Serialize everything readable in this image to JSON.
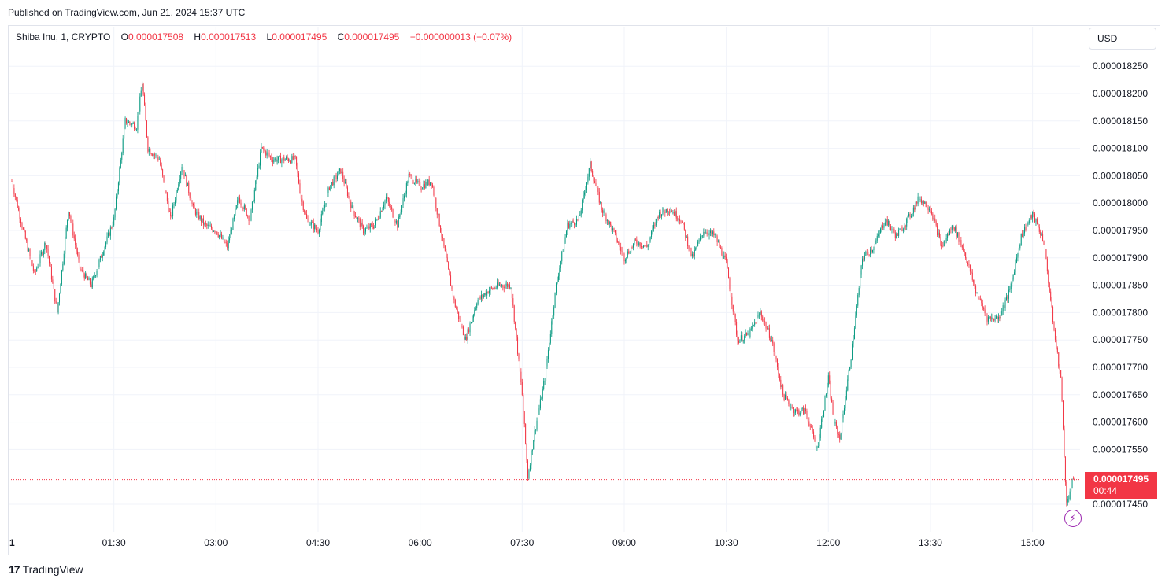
{
  "published": "Published on TradingView.com, Jun 21, 2024 15:37 UTC",
  "legend": {
    "symbol": "Shiba Inu, 1, CRYPTO",
    "open_label": "O",
    "open": "0.000017508",
    "high_label": "H",
    "high": "0.000017513",
    "low_label": "L",
    "low": "0.000017495",
    "close_label": "C",
    "close": "0.000017495",
    "change": "−0.000000013 (−0.07%)"
  },
  "currency": "USD",
  "last_price": {
    "price": "0.000017495",
    "countdown": "00:44"
  },
  "footer": {
    "brand": "TradingView",
    "brand_mark": "17"
  },
  "icons": {
    "alert": "lightning-icon"
  },
  "colors": {
    "up": "#089981",
    "down": "#f23645",
    "grid": "#f0f3fa",
    "accent": "#9c27b0"
  },
  "chart_data": {
    "type": "candlestick",
    "title": "Shiba Inu, 1, CRYPTO",
    "x_tick_labels": [
      "1",
      "01:30",
      "03:00",
      "04:30",
      "06:00",
      "07:30",
      "09:00",
      "10:30",
      "12:00",
      "13:30",
      "15:00"
    ],
    "y_tick_labels": [
      "0.000018250",
      "0.000018200",
      "0.000018150",
      "0.000018100",
      "0.000018050",
      "0.000018000",
      "0.000017950",
      "0.000017900",
      "0.000017850",
      "0.000017800",
      "0.000017750",
      "0.000017700",
      "0.000017650",
      "0.000017600",
      "0.000017550",
      "0.000017450"
    ],
    "ylim": [
      1.742e-05,
      1.829e-05
    ],
    "xlim_minutes": [
      0,
      937
    ],
    "last_price": 1.7495e-05,
    "series": [
      {
        "name": "Shiba Inu",
        "anchors_minutes": [
          0,
          10,
          20,
          30,
          40,
          50,
          60,
          70,
          80,
          90,
          100,
          110,
          115,
          120,
          130,
          140,
          150,
          160,
          170,
          180,
          190,
          200,
          210,
          220,
          230,
          240,
          250,
          255,
          260,
          270,
          280,
          290,
          300,
          310,
          320,
          330,
          340,
          350,
          360,
          370,
          380,
          390,
          400,
          410,
          420,
          430,
          440,
          445,
          450,
          455,
          460,
          470,
          480,
          490,
          500,
          510,
          520,
          530,
          540,
          550,
          560,
          570,
          580,
          590,
          600,
          610,
          620,
          630,
          640,
          650,
          660,
          670,
          680,
          690,
          700,
          710,
          720,
          725,
          730,
          740,
          750,
          760,
          770,
          780,
          790,
          800,
          810,
          820,
          830,
          840,
          850,
          860,
          870,
          880,
          890,
          900,
          910,
          920,
          925,
          930,
          935
        ],
        "anchors_price": [
          1.804e-05,
          1.795e-05,
          1.787e-05,
          1.793e-05,
          1.78e-05,
          1.799e-05,
          1.788e-05,
          1.785e-05,
          1.791e-05,
          1.797e-05,
          1.815e-05,
          1.814e-05,
          1.822e-05,
          1.81e-05,
          1.808e-05,
          1.797e-05,
          1.807e-05,
          1.799e-05,
          1.796e-05,
          1.795e-05,
          1.792e-05,
          1.801e-05,
          1.797e-05,
          1.81e-05,
          1.808e-05,
          1.808e-05,
          1.808e-05,
          1.801e-05,
          1.797e-05,
          1.795e-05,
          1.803e-05,
          1.806e-05,
          1.799e-05,
          1.795e-05,
          1.796e-05,
          1.801e-05,
          1.796e-05,
          1.805e-05,
          1.803e-05,
          1.804e-05,
          1.793e-05,
          1.782e-05,
          1.775e-05,
          1.782e-05,
          1.784e-05,
          1.785e-05,
          1.785e-05,
          1.775e-05,
          1.765e-05,
          1.75e-05,
          1.757e-05,
          1.768e-05,
          1.785e-05,
          1.796e-05,
          1.797e-05,
          1.807e-05,
          1.799e-05,
          1.795e-05,
          1.79e-05,
          1.793e-05,
          1.792e-05,
          1.798e-05,
          1.799e-05,
          1.797e-05,
          1.79e-05,
          1.795e-05,
          1.794e-05,
          1.789e-05,
          1.775e-05,
          1.776e-05,
          1.78e-05,
          1.775e-05,
          1.765e-05,
          1.762e-05,
          1.762e-05,
          1.755e-05,
          1.768e-05,
          1.76e-05,
          1.757e-05,
          1.772e-05,
          1.79e-05,
          1.792e-05,
          1.797e-05,
          1.794e-05,
          1.797e-05,
          1.801e-05,
          1.799e-05,
          1.792e-05,
          1.796e-05,
          1.791e-05,
          1.784e-05,
          1.779e-05,
          1.779e-05,
          1.784e-05,
          1.794e-05,
          1.798e-05,
          1.793e-05,
          1.775e-05,
          1.768e-05,
          1.745e-05,
          1.749e-05
        ]
      }
    ]
  }
}
